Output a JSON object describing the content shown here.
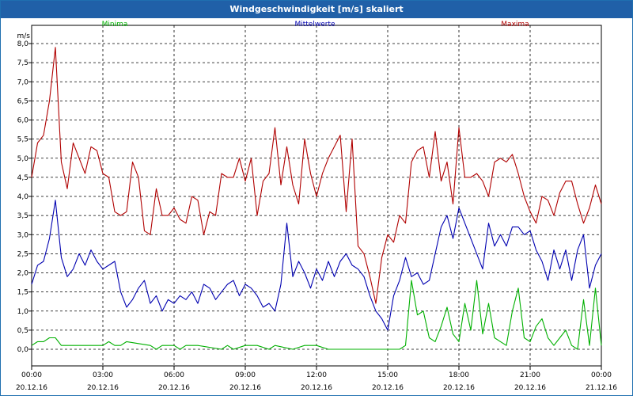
{
  "window": {
    "title": "Windgeschwindigkeit [m/s] skaliert"
  },
  "chart_data": {
    "type": "line",
    "title": "Windgeschwindigkeit [m/s] skaliert",
    "ylabel": "m/s",
    "xlabel": "",
    "ylim": [
      0,
      8
    ],
    "xlim": [
      0,
      24
    ],
    "grid": true,
    "legend_position": "top",
    "y_ticks": [
      "0,0",
      "0,5",
      "1,0",
      "1,5",
      "2,0",
      "2,5",
      "3,0",
      "3,5",
      "4,0",
      "4,5",
      "5,0",
      "5,5",
      "6,0",
      "6,5",
      "7,0",
      "7,5",
      "8,0"
    ],
    "x_ticks": [
      {
        "time": "00:00",
        "date": "20.12.16"
      },
      {
        "time": "03:00",
        "date": "20.12.16"
      },
      {
        "time": "06:00",
        "date": "20.12.16"
      },
      {
        "time": "09:00",
        "date": "20.12.16"
      },
      {
        "time": "12:00",
        "date": "20.12.16"
      },
      {
        "time": "15:00",
        "date": "20.12.16"
      },
      {
        "time": "18:00",
        "date": "20.12.16"
      },
      {
        "time": "21:00",
        "date": "20.12.16"
      },
      {
        "time": "00:00",
        "date": "21.12.16"
      }
    ],
    "x_unit": "hours since 20.12.16 00:00",
    "series": [
      {
        "name": "Minima",
        "color": "#00b000",
        "x": [
          0,
          0.25,
          0.5,
          0.75,
          1,
          1.25,
          1.5,
          3,
          3.25,
          3.5,
          3.75,
          4,
          5,
          5.25,
          5.5,
          6,
          6.25,
          6.5,
          7,
          8,
          8.25,
          8.5,
          9,
          9.5,
          10,
          10.25,
          11,
          11.5,
          12,
          12.5,
          13,
          13.5,
          14,
          14.5,
          15,
          15.5,
          15.75,
          16,
          16.25,
          16.5,
          16.75,
          17,
          17.25,
          17.5,
          17.75,
          18,
          18.25,
          18.5,
          18.75,
          19,
          19.25,
          19.5,
          19.75,
          20,
          20.25,
          20.5,
          20.75,
          21,
          21.25,
          21.5,
          21.75,
          22,
          22.25,
          22.5,
          22.75,
          23,
          23.25,
          23.5,
          23.75,
          24
        ],
        "values": [
          0.1,
          0.2,
          0.2,
          0.3,
          0.3,
          0.1,
          0.1,
          0.1,
          0.2,
          0.1,
          0.1,
          0.2,
          0.1,
          0.0,
          0.1,
          0.1,
          0.0,
          0.1,
          0.1,
          0.0,
          0.1,
          0.0,
          0.1,
          0.1,
          0.0,
          0.1,
          0.0,
          0.1,
          0.1,
          0.0,
          0.0,
          0.0,
          0.0,
          0.0,
          0.0,
          0.0,
          0.1,
          1.8,
          0.9,
          1.0,
          0.3,
          0.2,
          0.6,
          1.1,
          0.4,
          0.2,
          1.2,
          0.5,
          1.8,
          0.4,
          1.2,
          0.3,
          0.2,
          0.1,
          1.0,
          1.6,
          0.3,
          0.2,
          0.6,
          0.8,
          0.3,
          0.1,
          0.3,
          0.5,
          0.1,
          0.0,
          1.3,
          0.1,
          1.6,
          0.1
        ]
      },
      {
        "name": "Mittelwerte",
        "color": "#0000b0",
        "x": [
          0,
          0.25,
          0.5,
          0.75,
          1,
          1.25,
          1.5,
          1.75,
          2,
          2.25,
          2.5,
          2.75,
          3,
          3.25,
          3.5,
          3.75,
          4,
          4.25,
          4.5,
          4.75,
          5,
          5.25,
          5.5,
          5.75,
          6,
          6.25,
          6.5,
          6.75,
          7,
          7.25,
          7.5,
          7.75,
          8,
          8.25,
          8.5,
          8.75,
          9,
          9.25,
          9.5,
          9.75,
          10,
          10.25,
          10.5,
          10.75,
          11,
          11.25,
          11.5,
          11.75,
          12,
          12.25,
          12.5,
          12.75,
          13,
          13.25,
          13.5,
          13.75,
          14,
          14.25,
          14.5,
          14.75,
          15,
          15.25,
          15.5,
          15.75,
          16,
          16.25,
          16.5,
          16.75,
          17,
          17.25,
          17.5,
          17.75,
          18,
          18.25,
          18.5,
          18.75,
          19,
          19.25,
          19.5,
          19.75,
          20,
          20.25,
          20.5,
          20.75,
          21,
          21.25,
          21.5,
          21.75,
          22,
          22.25,
          22.5,
          22.75,
          23,
          23.25,
          23.5,
          23.75,
          24
        ],
        "values": [
          1.7,
          2.2,
          2.3,
          2.9,
          3.9,
          2.4,
          1.9,
          2.1,
          2.5,
          2.2,
          2.6,
          2.3,
          2.1,
          2.2,
          2.3,
          1.5,
          1.1,
          1.3,
          1.6,
          1.8,
          1.2,
          1.4,
          1.0,
          1.3,
          1.2,
          1.4,
          1.3,
          1.5,
          1.2,
          1.7,
          1.6,
          1.3,
          1.5,
          1.7,
          1.8,
          1.4,
          1.7,
          1.6,
          1.4,
          1.1,
          1.2,
          1.0,
          1.7,
          3.3,
          1.9,
          2.3,
          2.0,
          1.6,
          2.1,
          1.8,
          2.3,
          1.9,
          2.3,
          2.5,
          2.2,
          2.1,
          1.9,
          1.4,
          1.0,
          0.8,
          0.5,
          1.4,
          1.8,
          2.4,
          1.9,
          2.0,
          1.7,
          1.8,
          2.5,
          3.2,
          3.5,
          2.9,
          3.7,
          3.3,
          2.9,
          2.5,
          2.1,
          3.3,
          2.7,
          3.0,
          2.7,
          3.2,
          3.2,
          3.0,
          3.1,
          2.6,
          2.3,
          1.8,
          2.6,
          2.1,
          2.6,
          1.8,
          2.6,
          3.0,
          1.6,
          2.2,
          2.5
        ]
      },
      {
        "name": "Maxima",
        "color": "#b00000",
        "x": [
          0,
          0.25,
          0.5,
          0.75,
          1,
          1.25,
          1.5,
          1.75,
          2,
          2.25,
          2.5,
          2.75,
          3,
          3.25,
          3.5,
          3.75,
          4,
          4.25,
          4.5,
          4.75,
          5,
          5.25,
          5.5,
          5.75,
          6,
          6.25,
          6.5,
          6.75,
          7,
          7.25,
          7.5,
          7.75,
          8,
          8.25,
          8.5,
          8.75,
          9,
          9.25,
          9.5,
          9.75,
          10,
          10.25,
          10.5,
          10.75,
          11,
          11.25,
          11.5,
          11.75,
          12,
          12.25,
          12.5,
          12.75,
          13,
          13.25,
          13.5,
          13.75,
          14,
          14.25,
          14.5,
          14.75,
          15,
          15.25,
          15.5,
          15.75,
          16,
          16.25,
          16.5,
          16.75,
          17,
          17.25,
          17.5,
          17.75,
          18,
          18.25,
          18.5,
          18.75,
          19,
          19.25,
          19.5,
          19.75,
          20,
          20.25,
          20.5,
          20.75,
          21,
          21.25,
          21.5,
          21.75,
          22,
          22.25,
          22.5,
          22.75,
          23,
          23.25,
          23.5,
          23.75,
          24
        ],
        "values": [
          4.5,
          5.4,
          5.6,
          6.5,
          7.9,
          4.9,
          4.2,
          5.4,
          5.0,
          4.6,
          5.3,
          5.2,
          4.6,
          4.5,
          3.6,
          3.5,
          3.6,
          4.9,
          4.5,
          3.1,
          3.0,
          4.2,
          3.5,
          3.5,
          3.7,
          3.4,
          3.3,
          4.0,
          3.9,
          3.0,
          3.6,
          3.5,
          4.6,
          4.5,
          4.5,
          5.0,
          4.4,
          5.0,
          3.5,
          4.4,
          4.6,
          5.8,
          4.3,
          5.3,
          4.3,
          3.8,
          5.5,
          4.6,
          4.0,
          4.6,
          5.0,
          5.3,
          5.6,
          3.6,
          5.5,
          2.7,
          2.5,
          1.9,
          1.2,
          2.4,
          3.0,
          2.8,
          3.5,
          3.3,
          4.9,
          5.2,
          5.3,
          4.5,
          5.7,
          4.4,
          4.9,
          3.8,
          5.8,
          4.5,
          4.5,
          4.6,
          4.4,
          4.0,
          4.9,
          5.0,
          4.9,
          5.1,
          4.6,
          4.0,
          3.6,
          3.3,
          4.0,
          3.9,
          3.5,
          4.1,
          4.4,
          4.4,
          3.8,
          3.3,
          3.7,
          4.3,
          3.8
        ]
      }
    ]
  }
}
